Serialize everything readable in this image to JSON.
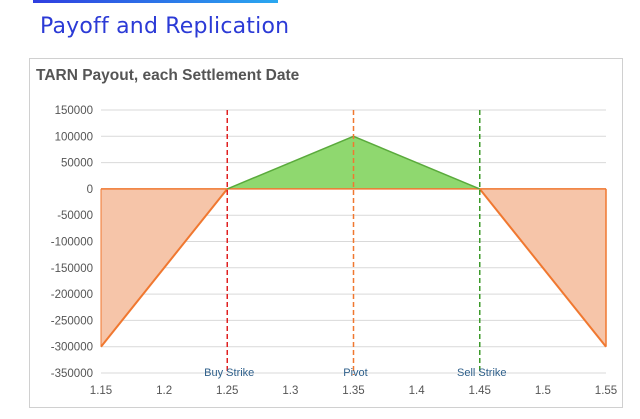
{
  "page": {
    "title": "Payoff and Replication"
  },
  "chart_data": {
    "type": "area",
    "title": "TARN Payout, each Settlement Date",
    "xlabel": "",
    "ylabel": "",
    "x": [
      1.15,
      1.25,
      1.35,
      1.45,
      1.55
    ],
    "y": [
      -300000,
      0,
      100000,
      0,
      -300000
    ],
    "xlim": [
      1.15,
      1.55
    ],
    "ylim": [
      -350000,
      150000
    ],
    "x_ticks": [
      "1.15",
      "1.2",
      "1.25",
      "1.3",
      "1.35",
      "1.4",
      "1.45",
      "1.5",
      "1.55"
    ],
    "x_tick_values": [
      1.15,
      1.2,
      1.25,
      1.3,
      1.35,
      1.4,
      1.45,
      1.5,
      1.55
    ],
    "y_ticks": [
      "150000",
      "100000",
      "50000",
      "0",
      "-50000",
      "-100000",
      "-150000",
      "-200000",
      "-250000",
      "-300000",
      "-350000"
    ],
    "y_tick_values": [
      150000,
      100000,
      50000,
      0,
      -50000,
      -100000,
      -150000,
      -200000,
      -250000,
      -300000,
      -350000
    ],
    "grid": true,
    "legend": "none",
    "colors": {
      "positive_fill": "#8fd86f",
      "positive_line": "#5aaa3c",
      "negative_fill": "#f6c5a9",
      "payout_line": "#f07830",
      "buy_strike_line": "#e02020",
      "pivot_line": "#f07830",
      "sell_strike_line": "#3c9a2a",
      "gridline": "#d9d9d9"
    },
    "vertical_lines": [
      {
        "x": 1.25,
        "label": "Buy Strike",
        "color": "#e02020"
      },
      {
        "x": 1.35,
        "label": "Pivot",
        "color": "#f07830"
      },
      {
        "x": 1.45,
        "label": "Sell Strike",
        "color": "#3c9a2a"
      }
    ]
  }
}
